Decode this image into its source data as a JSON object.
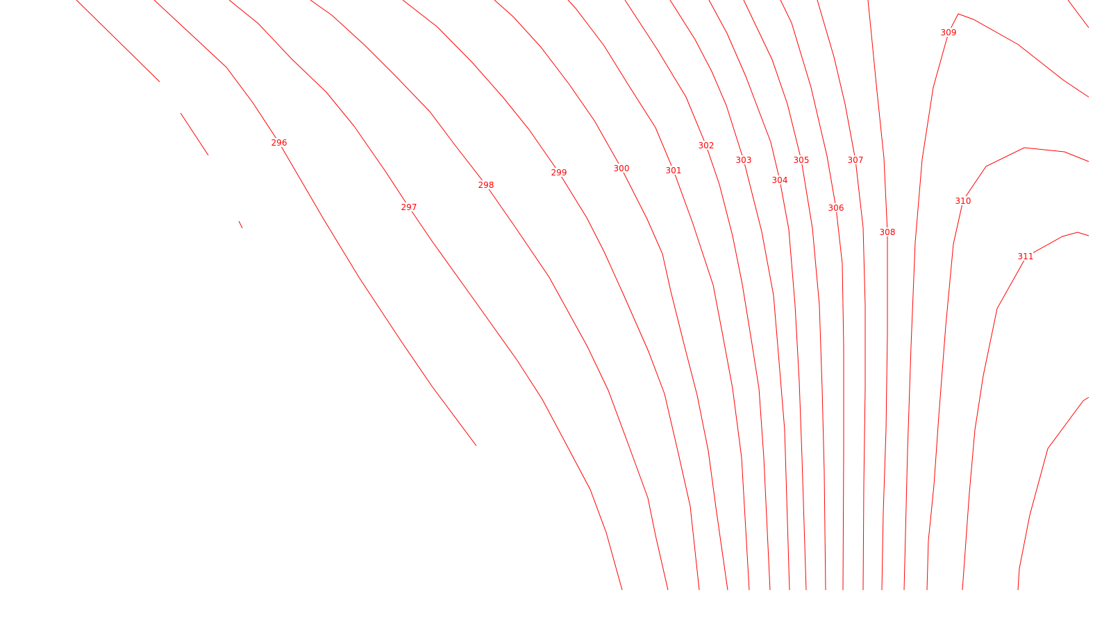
{
  "map": {
    "line_color": "#ff0000",
    "background_color": "#ffffff",
    "contour_labels": [
      "296",
      "297",
      "298",
      "299",
      "300",
      "301",
      "302",
      "303",
      "304",
      "305",
      "306",
      "307",
      "308",
      "309",
      "310",
      "311"
    ]
  }
}
